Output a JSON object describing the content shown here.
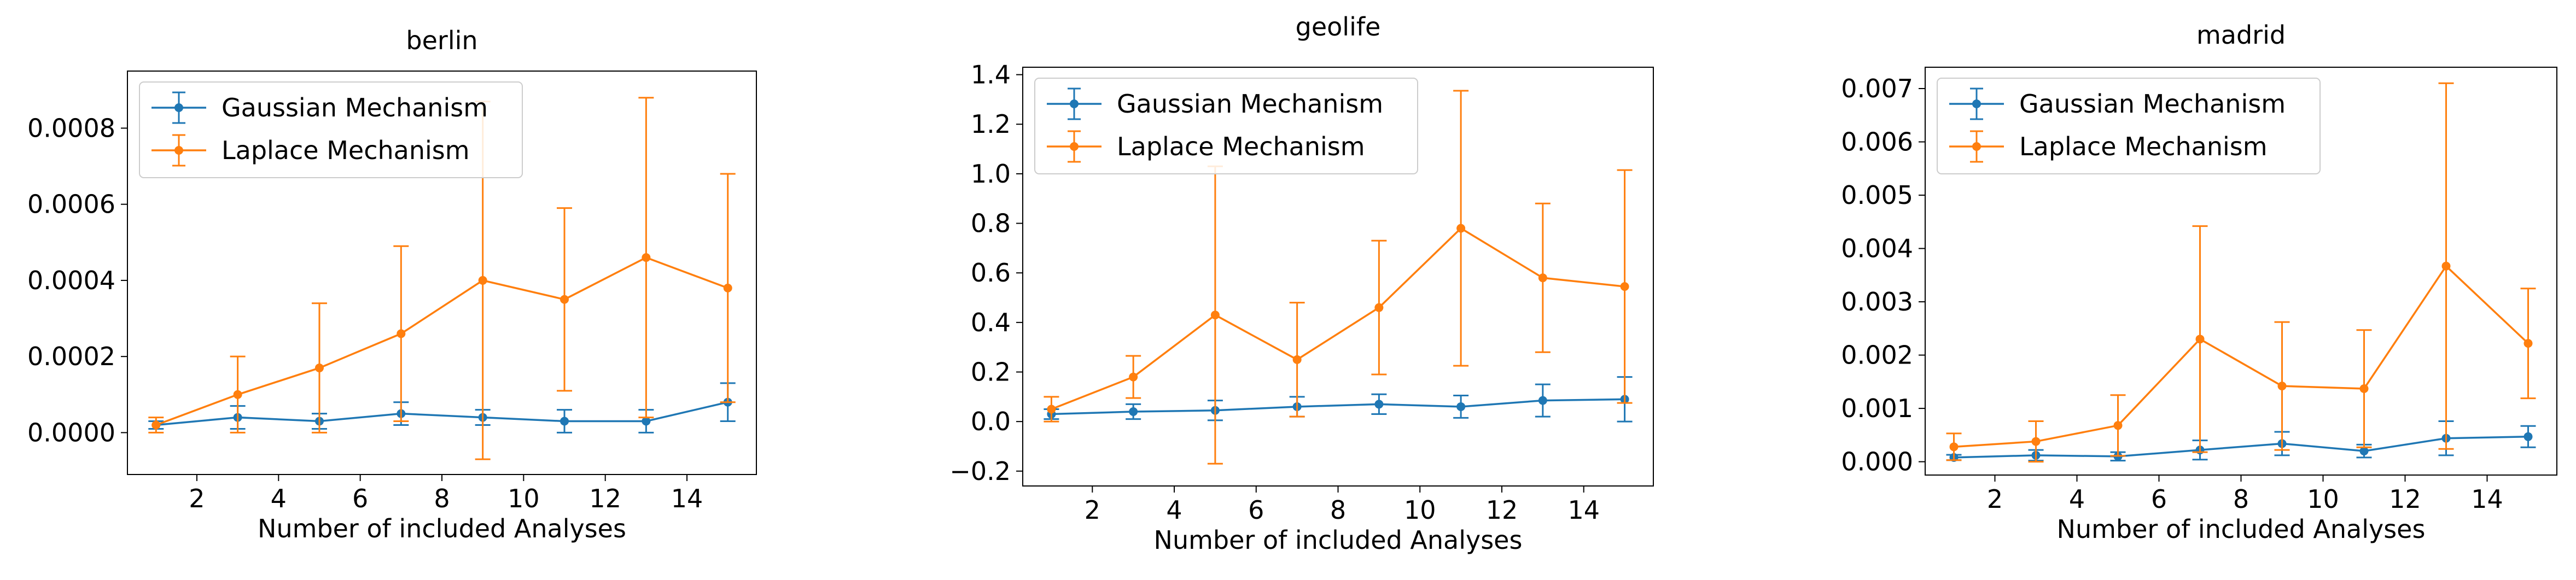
{
  "colors": {
    "gaussian": "#1f77b4",
    "laplace": "#ff7f0e"
  },
  "chart_data": [
    {
      "type": "line",
      "title": "berlin",
      "xlabel": "Number of included Analyses",
      "ylabel": "",
      "x": [
        1,
        3,
        5,
        7,
        9,
        11,
        13,
        15
      ],
      "xlim": [
        0.3,
        15.7
      ],
      "ylim": [
        -0.00011,
        0.00095
      ],
      "xticks": [
        2,
        4,
        6,
        8,
        10,
        12,
        14
      ],
      "xtick_labels": [
        "2",
        "4",
        "6",
        "8",
        "10",
        "12",
        "14"
      ],
      "yticks": [
        0,
        0.0002,
        0.0004,
        0.0006,
        0.0008
      ],
      "ytick_labels": [
        "0.0000",
        "0.0002",
        "0.0004",
        "0.0006",
        "0.0008"
      ],
      "series": [
        {
          "name": "Gaussian Mechanism",
          "values": [
            2e-05,
            4e-05,
            3e-05,
            5e-05,
            4e-05,
            3e-05,
            3e-05,
            8e-05
          ],
          "err": [
            1e-05,
            3e-05,
            2e-05,
            3e-05,
            2e-05,
            3e-05,
            3e-05,
            5e-05
          ]
        },
        {
          "name": "Laplace Mechanism",
          "values": [
            2e-05,
            0.0001,
            0.00017,
            0.00026,
            0.0004,
            0.00035,
            0.00046,
            0.00038
          ],
          "err": [
            2e-05,
            0.0001,
            0.00017,
            0.00023,
            0.00047,
            0.00024,
            0.00042,
            0.0003
          ]
        }
      ],
      "legend": "upper-left",
      "grid": false
    },
    {
      "type": "line",
      "title": "geolife",
      "xlabel": "Number of included Analyses",
      "ylabel": "",
      "x": [
        1,
        3,
        5,
        7,
        9,
        11,
        13,
        15
      ],
      "xlim": [
        0.3,
        15.7
      ],
      "ylim": [
        -0.26,
        1.43
      ],
      "xticks": [
        2,
        4,
        6,
        8,
        10,
        12,
        14
      ],
      "xtick_labels": [
        "2",
        "4",
        "6",
        "8",
        "10",
        "12",
        "14"
      ],
      "yticks": [
        -0.2,
        0,
        0.2,
        0.4,
        0.6,
        0.8,
        1.0,
        1.2,
        1.4
      ],
      "ytick_labels": [
        "−0.2",
        "0.0",
        "0.2",
        "0.4",
        "0.6",
        "0.8",
        "1.0",
        "1.2",
        "1.4"
      ],
      "series": [
        {
          "name": "Gaussian Mechanism",
          "values": [
            0.03,
            0.04,
            0.045,
            0.06,
            0.07,
            0.06,
            0.085,
            0.09
          ],
          "err": [
            0.02,
            0.03,
            0.04,
            0.04,
            0.04,
            0.045,
            0.065,
            0.09
          ]
        },
        {
          "name": "Laplace Mechanism",
          "values": [
            0.05,
            0.18,
            0.43,
            0.25,
            0.46,
            0.78,
            0.58,
            0.545
          ],
          "err": [
            0.05,
            0.085,
            0.6,
            0.23,
            0.27,
            0.555,
            0.3,
            0.47
          ]
        }
      ],
      "legend": "upper-left",
      "grid": false
    },
    {
      "type": "line",
      "title": "madrid",
      "xlabel": "Number of included Analyses",
      "ylabel": "",
      "x": [
        1,
        3,
        5,
        7,
        9,
        11,
        13,
        15
      ],
      "xlim": [
        0.3,
        15.7
      ],
      "ylim": [
        -0.00025,
        0.0074
      ],
      "xticks": [
        2,
        4,
        6,
        8,
        10,
        12,
        14
      ],
      "xtick_labels": [
        "2",
        "4",
        "6",
        "8",
        "10",
        "12",
        "14"
      ],
      "yticks": [
        0,
        0.001,
        0.002,
        0.003,
        0.004,
        0.005,
        0.006,
        0.007
      ],
      "ytick_labels": [
        "0.000",
        "0.001",
        "0.002",
        "0.003",
        "0.004",
        "0.005",
        "0.006",
        "0.007"
      ],
      "series": [
        {
          "name": "Gaussian Mechanism",
          "values": [
            8e-05,
            0.00012,
            0.0001,
            0.00022,
            0.00034,
            0.0002,
            0.00044,
            0.00047
          ],
          "err": [
            5e-05,
            0.0001,
            8e-05,
            0.00018,
            0.00022,
            0.00012,
            0.00032,
            0.0002
          ]
        },
        {
          "name": "Laplace Mechanism",
          "values": [
            0.00028,
            0.00038,
            0.00068,
            0.0023,
            0.00142,
            0.00137,
            0.00367,
            0.00222
          ],
          "err": [
            0.00025,
            0.00038,
            0.00057,
            0.00212,
            0.0012,
            0.0011,
            0.00343,
            0.00103
          ]
        }
      ],
      "legend": "upper-left",
      "grid": false
    }
  ]
}
